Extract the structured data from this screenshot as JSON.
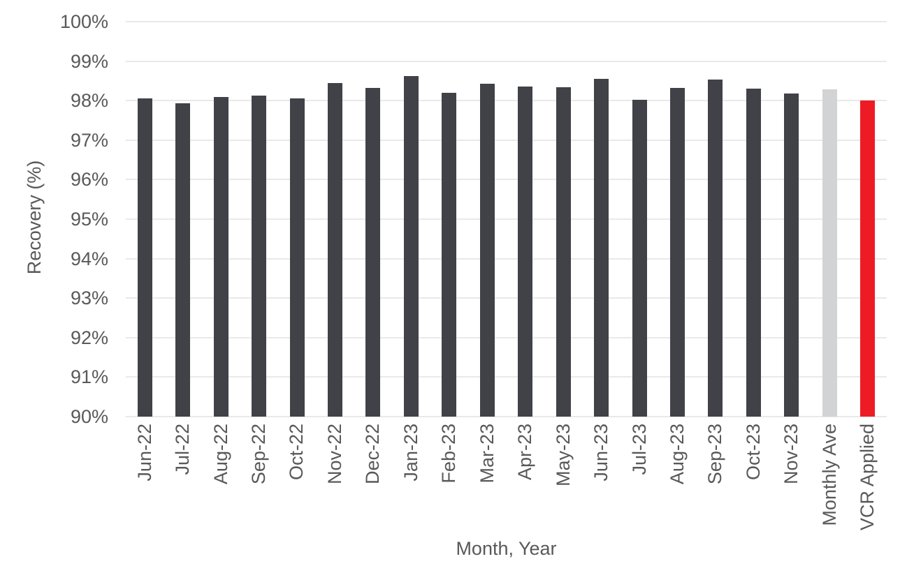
{
  "chart_data": {
    "type": "bar",
    "title": "",
    "xlabel": "Month, Year",
    "ylabel": "Recovery (%)",
    "ylim": [
      90,
      100
    ],
    "ytick_step": 1,
    "y_ticks": [
      "100%",
      "99%",
      "98%",
      "97%",
      "96%",
      "95%",
      "94%",
      "93%",
      "92%",
      "91%",
      "90%"
    ],
    "grid": true,
    "legend": false,
    "categories": [
      "Jun-22",
      "Jul-22",
      "Aug-22",
      "Sep-22",
      "Oct-22",
      "Nov-22",
      "Dec-22",
      "Jan-23",
      "Feb-23",
      "Mar-23",
      "Apr-23",
      "May-23",
      "Jun-23",
      "Jul-23",
      "Aug-23",
      "Sep-23",
      "Oct-23",
      "Nov-23",
      "Monthly Ave",
      "VCR Applied"
    ],
    "values": [
      98.06,
      97.94,
      98.1,
      98.13,
      98.06,
      98.44,
      98.32,
      98.62,
      98.2,
      98.43,
      98.35,
      98.34,
      98.56,
      98.03,
      98.32,
      98.53,
      98.31,
      98.18,
      98.28,
      98.01
    ],
    "colors": {
      "default_bar": "#404247",
      "monthly_ave_bar": "#d2d3d5",
      "vcr_applied_bar": "#ed1c24",
      "gridline": "#e9e9e9",
      "text": "#595959"
    },
    "special_bar_colors": {
      "Monthly Ave": "monthly_ave_bar",
      "VCR Applied": "vcr_applied_bar"
    }
  }
}
